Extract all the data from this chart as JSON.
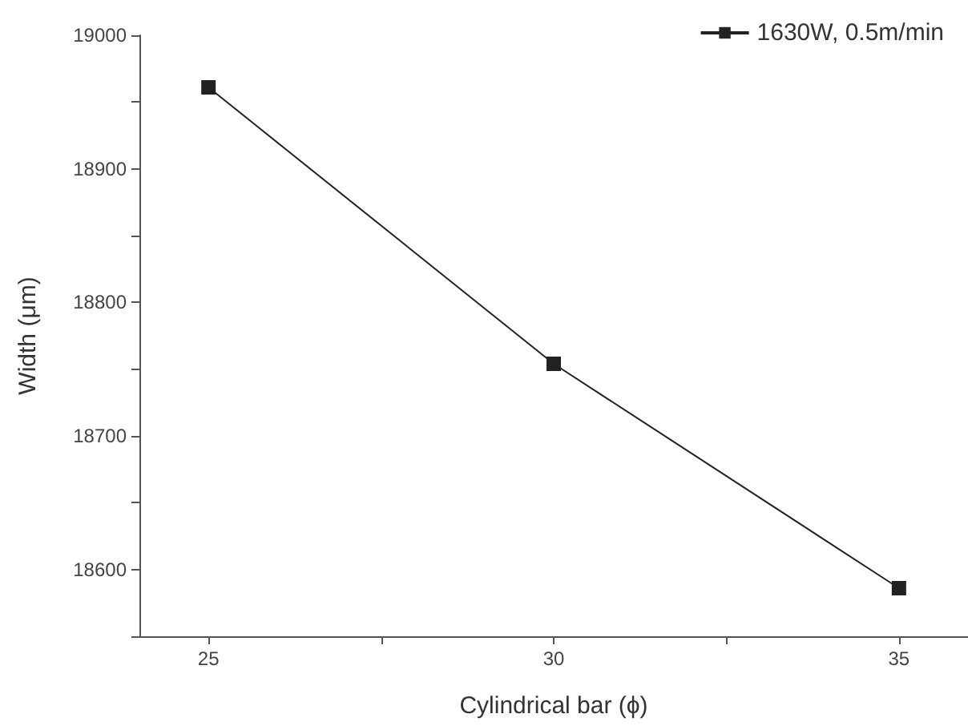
{
  "chart_data": {
    "type": "line",
    "xlabel": "Cylindrical bar (ϕ)",
    "ylabel": "Width (μm)",
    "x": [
      25,
      30,
      35
    ],
    "series": [
      {
        "name": "1630W, 0.5m/min",
        "color": "#222222",
        "values": [
          18961,
          18754,
          18586
        ]
      }
    ],
    "xlim": [
      24,
      36
    ],
    "ylim": [
      18550,
      19000
    ],
    "xticks": [
      25,
      {
        "value": 27.5,
        "label": null
      },
      30,
      {
        "value": 32.5,
        "label": null
      },
      35
    ],
    "yticks": [
      {
        "value": 18550,
        "label": null
      },
      18600,
      {
        "value": 18650,
        "label": null
      },
      18700,
      {
        "value": 18750,
        "label": null
      },
      18800,
      {
        "value": 18850,
        "label": null
      },
      18900,
      {
        "value": 18950,
        "label": null
      },
      19000
    ],
    "grid": false,
    "legend": "top right",
    "marker": "square",
    "line_style": "solid"
  }
}
